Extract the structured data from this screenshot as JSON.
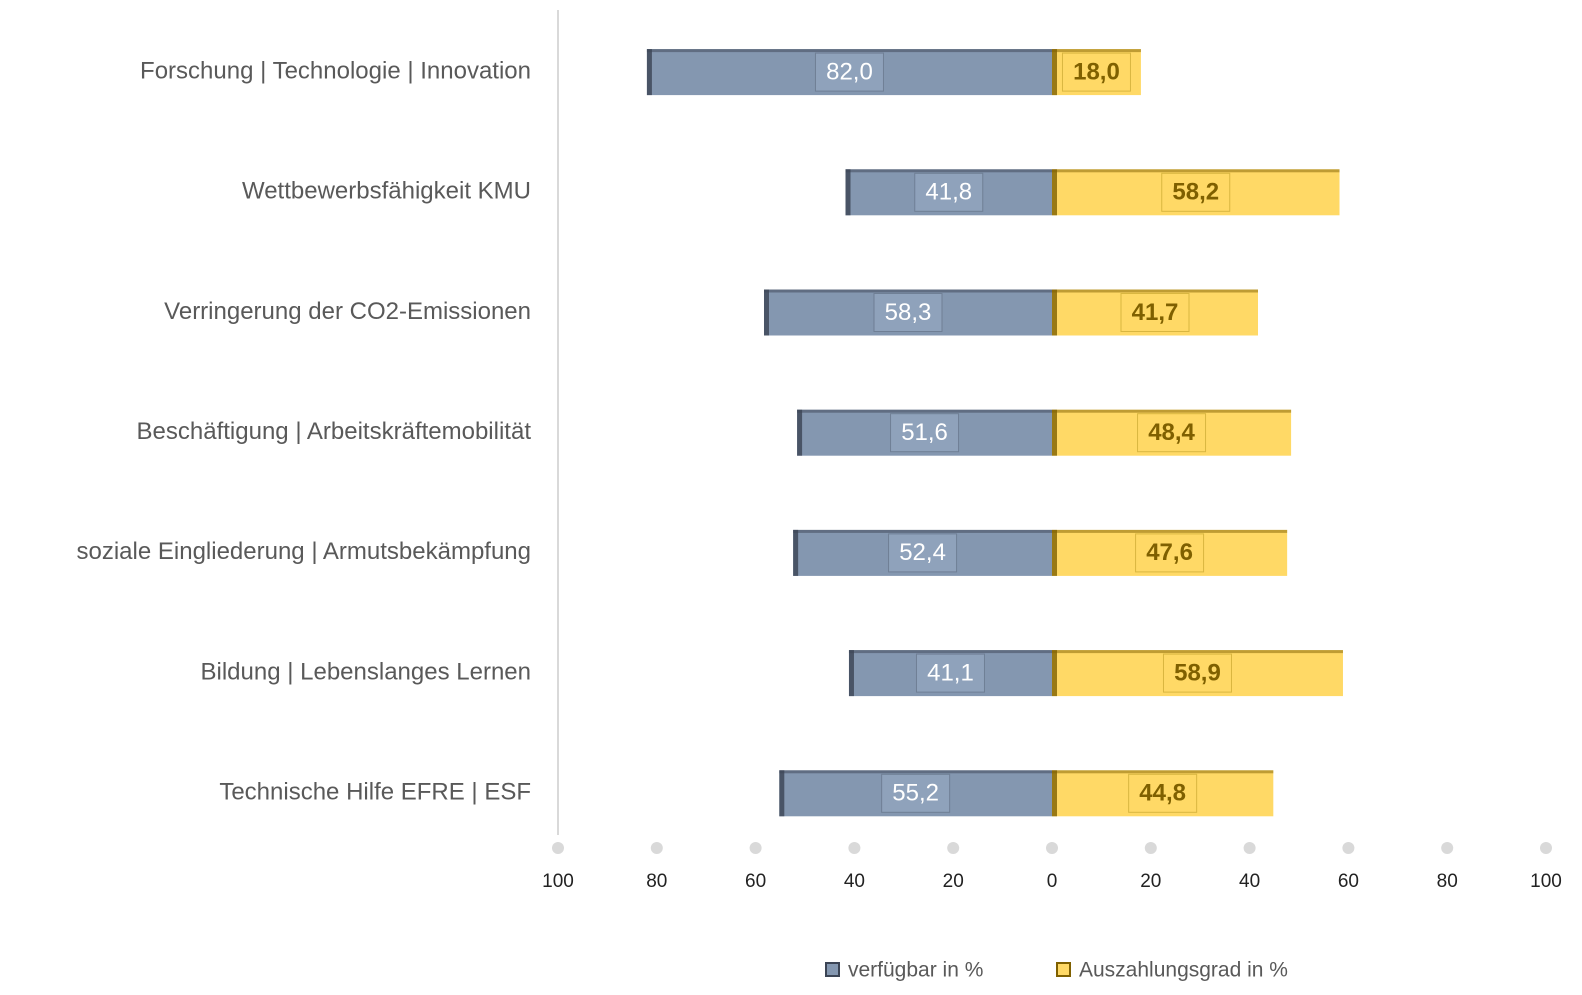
{
  "chart_data": {
    "type": "diverging-bar",
    "categories": [
      "Forschung | Technologie | Innovation",
      "Wettbewerbsfähigkeit KMU",
      "Verringerung der CO2-Emissionen",
      "Beschäftigung | Arbeitskräftemobilität",
      "soziale Eingliederung | Armutsbekämpfung",
      "Bildung | Lebenslanges Lernen",
      "Technische Hilfe EFRE | ESF"
    ],
    "series": [
      {
        "name": "verfügbar in %",
        "color": "#8497b0",
        "side": "left",
        "values": [
          82.0,
          41.8,
          58.3,
          51.6,
          52.4,
          41.1,
          55.2
        ],
        "value_labels": [
          "82,0",
          "41,8",
          "58,3",
          "51,6",
          "52,4",
          "41,1",
          "55,2"
        ]
      },
      {
        "name": "Auszahlungsgrad in %",
        "color": "#ffd966",
        "side": "right",
        "values": [
          18.0,
          58.2,
          41.7,
          48.4,
          47.6,
          58.9,
          44.8
        ],
        "value_labels": [
          "18,0",
          "58,2",
          "41,7",
          "48,4",
          "47,6",
          "58,9",
          "44,8"
        ]
      }
    ],
    "xlim": [
      -100,
      100
    ],
    "xticks": [
      {
        "value": -100,
        "label": "100"
      },
      {
        "value": -80,
        "label": "80"
      },
      {
        "value": -60,
        "label": "60"
      },
      {
        "value": -40,
        "label": "40"
      },
      {
        "value": -20,
        "label": "20"
      },
      0,
      20,
      40,
      60,
      80,
      100
    ],
    "legend": "bottom"
  }
}
